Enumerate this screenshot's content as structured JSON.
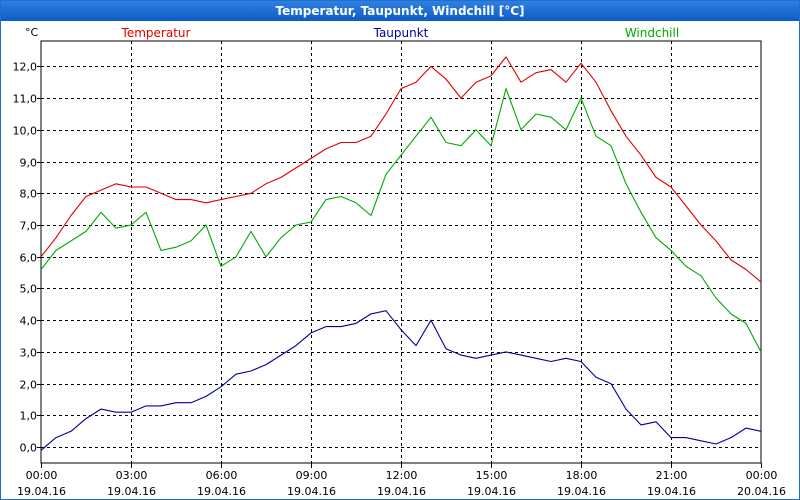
{
  "window": {
    "title": "Temperatur, Taupunkt, Windchill [°C]"
  },
  "chart_data": {
    "type": "line",
    "title": "Temperatur, Taupunkt, Windchill [°C]",
    "unit": "°C",
    "ylim": [
      -0.5,
      12.8
    ],
    "xlim": [
      0,
      24
    ],
    "y_ticks": [
      {
        "value": 0,
        "label": "0,0"
      },
      {
        "value": 1,
        "label": "1,0"
      },
      {
        "value": 2,
        "label": "2,0"
      },
      {
        "value": 3,
        "label": "3,0"
      },
      {
        "value": 4,
        "label": "4,0"
      },
      {
        "value": 5,
        "label": "5,0"
      },
      {
        "value": 6,
        "label": "6,0"
      },
      {
        "value": 7,
        "label": "7,0"
      },
      {
        "value": 8,
        "label": "8,0"
      },
      {
        "value": 9,
        "label": "9,0"
      },
      {
        "value": 10,
        "label": "10,0"
      },
      {
        "value": 11,
        "label": "11,0"
      },
      {
        "value": 12,
        "label": "12,0"
      }
    ],
    "x_ticks": [
      {
        "value": 0,
        "time": "00:00",
        "date": "19.04.16"
      },
      {
        "value": 3,
        "time": "03:00",
        "date": "19.04.16"
      },
      {
        "value": 6,
        "time": "06:00",
        "date": "19.04.16"
      },
      {
        "value": 9,
        "time": "09:00",
        "date": "19.04.16"
      },
      {
        "value": 12,
        "time": "12:00",
        "date": "19.04.16"
      },
      {
        "value": 15,
        "time": "15:00",
        "date": "19.04.16"
      },
      {
        "value": 18,
        "time": "18:00",
        "date": "19.04.16"
      },
      {
        "value": 21,
        "time": "21:00",
        "date": "19.04.16"
      },
      {
        "value": 24,
        "time": "00:00",
        "date": "20.04.16"
      }
    ],
    "x": [
      0,
      0.5,
      1,
      1.5,
      2,
      2.5,
      3,
      3.5,
      4,
      4.5,
      5,
      5.5,
      6,
      6.5,
      7,
      7.5,
      8,
      8.5,
      9,
      9.5,
      10,
      10.5,
      11,
      11.5,
      12,
      12.5,
      13,
      13.5,
      14,
      14.5,
      15,
      15.5,
      16,
      16.5,
      17,
      17.5,
      18,
      18.5,
      19,
      19.5,
      20,
      20.5,
      21,
      21.5,
      22,
      22.5,
      23,
      23.5,
      24
    ],
    "series": [
      {
        "name": "Temperatur",
        "color": "#e00000",
        "values": [
          6.0,
          6.6,
          7.3,
          7.9,
          8.1,
          8.3,
          8.2,
          8.2,
          8.0,
          7.8,
          7.8,
          7.7,
          7.8,
          7.9,
          8.0,
          8.3,
          8.5,
          8.8,
          9.1,
          9.4,
          9.6,
          9.6,
          9.8,
          10.5,
          11.3,
          11.5,
          12.0,
          11.6,
          11.0,
          11.5,
          11.7,
          12.3,
          11.5,
          11.8,
          11.9,
          11.5,
          12.1,
          11.5,
          10.6,
          9.8,
          9.2,
          8.5,
          8.2,
          7.6,
          7.0,
          6.5,
          5.9,
          5.6,
          5.2
        ]
      },
      {
        "name": "Taupunkt",
        "color": "#00009a",
        "values": [
          -0.1,
          0.3,
          0.5,
          0.9,
          1.2,
          1.1,
          1.1,
          1.3,
          1.3,
          1.4,
          1.4,
          1.6,
          1.9,
          2.3,
          2.4,
          2.6,
          2.9,
          3.2,
          3.6,
          3.8,
          3.8,
          3.9,
          4.2,
          4.3,
          3.7,
          3.2,
          4.0,
          3.1,
          2.9,
          2.8,
          2.9,
          3.0,
          2.9,
          2.8,
          2.7,
          2.8,
          2.7,
          2.2,
          2.0,
          1.2,
          0.7,
          0.8,
          0.3,
          0.3,
          0.2,
          0.1,
          0.3,
          0.6,
          0.5
        ]
      },
      {
        "name": "Windchill",
        "color": "#00aa00",
        "values": [
          5.6,
          6.2,
          6.5,
          6.8,
          7.4,
          6.9,
          7.0,
          7.4,
          6.2,
          6.3,
          6.5,
          7.0,
          5.7,
          6.0,
          6.8,
          6.0,
          6.6,
          7.0,
          7.1,
          7.8,
          7.9,
          7.7,
          7.3,
          8.6,
          9.2,
          9.8,
          10.4,
          9.6,
          9.5,
          10.0,
          9.5,
          11.3,
          10.0,
          10.5,
          10.4,
          10.0,
          11.0,
          9.8,
          9.5,
          8.3,
          7.4,
          6.6,
          6.2,
          5.7,
          5.4,
          4.7,
          4.2,
          3.9,
          3.0
        ]
      }
    ]
  }
}
